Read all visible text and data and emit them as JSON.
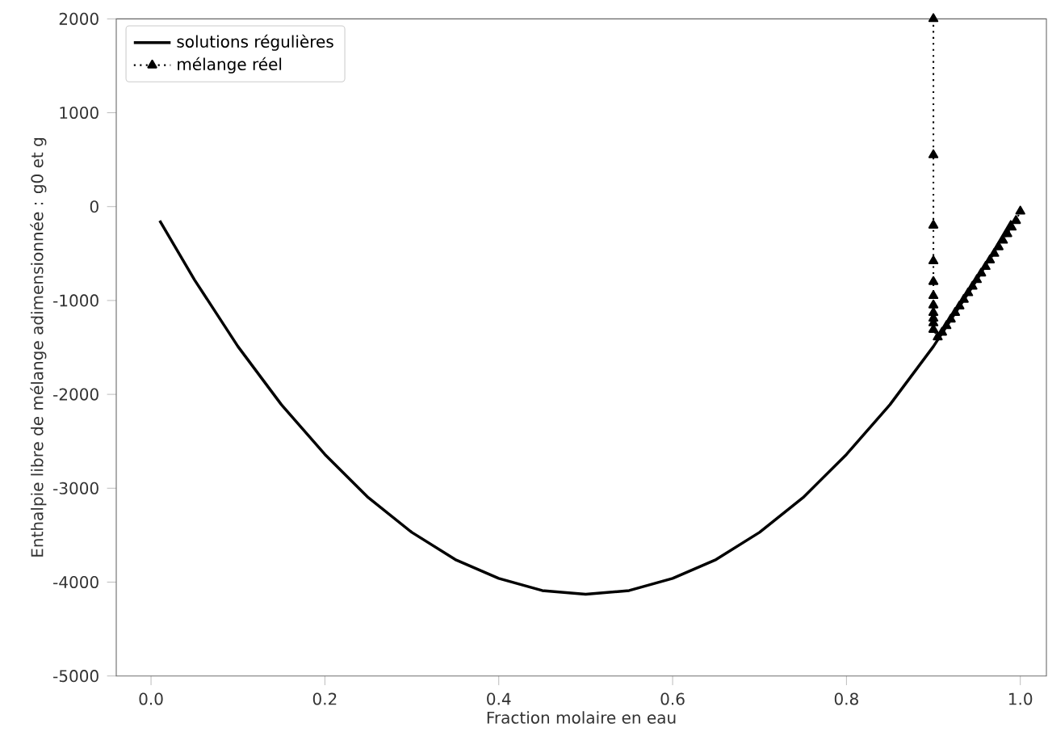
{
  "chart_data": {
    "type": "line",
    "xlabel": "Fraction molaire en eau",
    "ylabel": "Enthalpie libre de mélange adimensionnée : g0 et g",
    "xlim": [
      -0.04,
      1.03
    ],
    "ylim": [
      -5000,
      2000
    ],
    "xticks": [
      {
        "value": 0,
        "label": "0.0"
      },
      0.2,
      0.4,
      0.6,
      0.8,
      {
        "value": 1,
        "label": "1.0"
      }
    ],
    "yticks": [
      -5000,
      -4000,
      -3000,
      -2000,
      -1000,
      0,
      1000,
      2000
    ],
    "legend": "top left",
    "grid": false,
    "series": [
      {
        "name": "solutions régulières",
        "color": "#000000",
        "marker": "none",
        "line_style": "solid",
        "x": [
          0.01,
          0.05,
          0.1,
          0.15,
          0.2,
          0.25,
          0.3,
          0.35,
          0.4,
          0.45,
          0.5,
          0.55,
          0.6,
          0.65,
          0.7,
          0.75,
          0.8,
          0.85,
          0.9,
          0.95,
          0.99
        ],
        "values": [
          -150,
          -780,
          -1490,
          -2110,
          -2640,
          -3100,
          -3470,
          -3760,
          -3960,
          -4090,
          -4130,
          -4090,
          -3960,
          -3760,
          -3470,
          -3100,
          -2640,
          -2110,
          -1490,
          -780,
          -150
        ]
      },
      {
        "name": "mélange réel",
        "color": "#000000",
        "marker": "triangle",
        "line_style": "dotted",
        "x": [
          0.9,
          0.9,
          0.9,
          0.9,
          0.9,
          0.9,
          0.9,
          0.9,
          0.9,
          0.9,
          0.9,
          0.905,
          0.91,
          0.915,
          0.92,
          0.925,
          0.93,
          0.935,
          0.94,
          0.945,
          0.95,
          0.955,
          0.96,
          0.965,
          0.97,
          0.975,
          0.98,
          0.985,
          0.99,
          0.995,
          1.0
        ],
        "values": [
          2000,
          550,
          -200,
          -580,
          -800,
          -950,
          -1050,
          -1130,
          -1190,
          -1240,
          -1310,
          -1390,
          -1340,
          -1270,
          -1200,
          -1130,
          -1060,
          -990,
          -920,
          -850,
          -780,
          -710,
          -640,
          -570,
          -500,
          -430,
          -360,
          -290,
          -220,
          -150,
          -50
        ]
      }
    ]
  }
}
